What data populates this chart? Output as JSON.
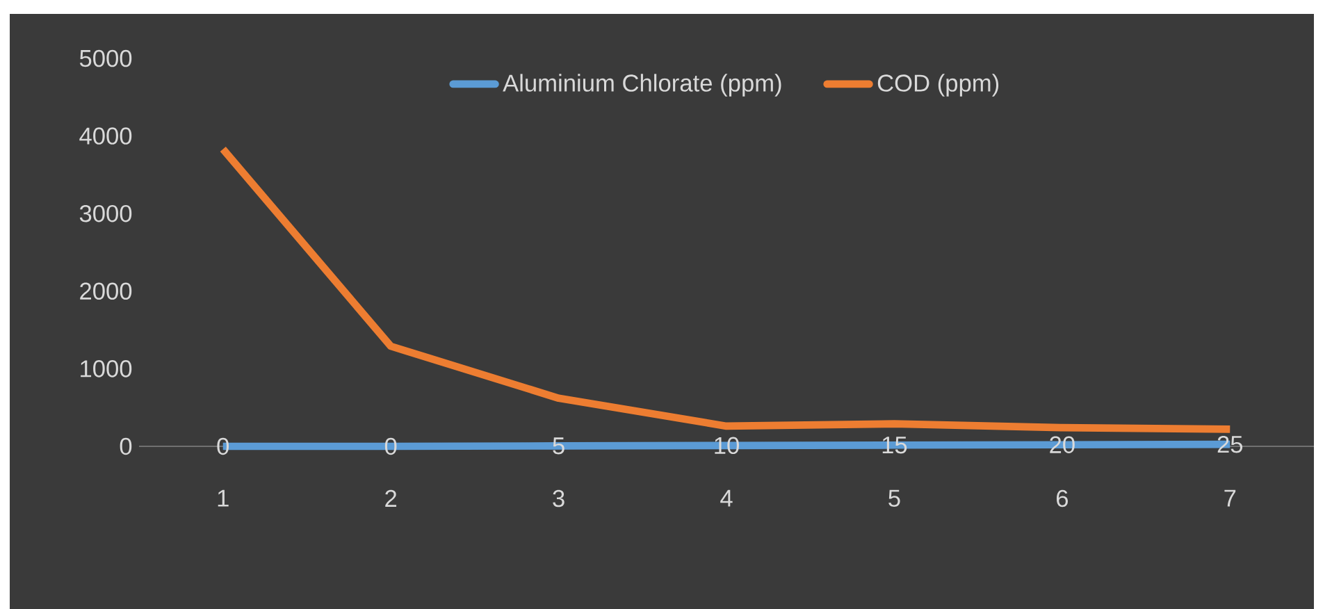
{
  "chart_data": {
    "type": "line",
    "categories": [
      "1",
      "2",
      "3",
      "4",
      "5",
      "6",
      "7"
    ],
    "series": [
      {
        "name": "Aluminium Chlorate  (ppm)",
        "color": "#5b9bd5",
        "values": [
          0,
          0,
          5,
          10,
          15,
          20,
          25
        ],
        "value_labels": [
          "0",
          "0",
          "5",
          "10",
          "15",
          "20",
          "25"
        ]
      },
      {
        "name": "COD (ppm)",
        "color": "#ed7d31",
        "values": [
          3830,
          1290,
          620,
          260,
          290,
          240,
          220
        ]
      }
    ],
    "ylim": [
      0,
      5000
    ],
    "yticks": [
      0,
      1000,
      2000,
      3000,
      4000,
      5000
    ],
    "legend": "top",
    "marker": "none"
  }
}
